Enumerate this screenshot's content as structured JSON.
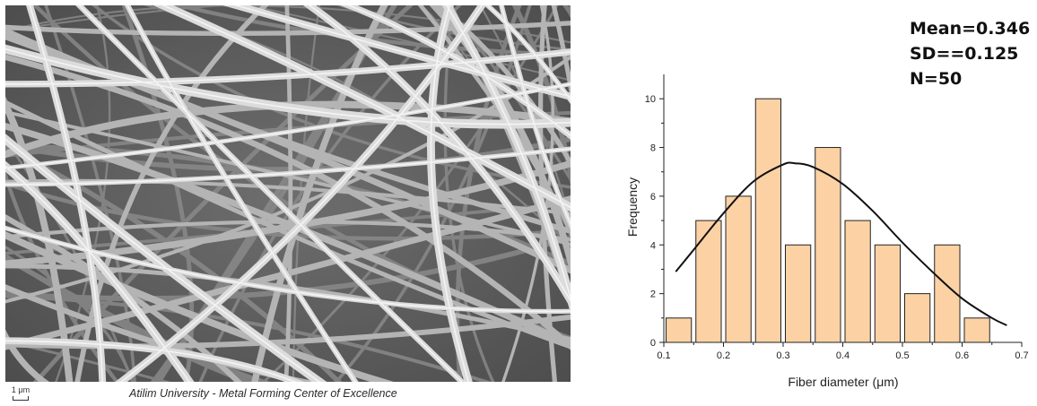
{
  "caption": "Atilim University - Metal Forming Center of Excellence",
  "scale_label": "1 μm",
  "stats": {
    "mean": "Mean=0.346",
    "sd": "SD==0.125",
    "n": "N=50"
  },
  "chart_data": {
    "type": "bar",
    "xlabel": "Fiber diameter (μm)",
    "ylabel": "Frequency",
    "xlim": [
      0.1,
      0.7
    ],
    "ylim": [
      0,
      11
    ],
    "xticks": [
      0.1,
      0.2,
      0.3,
      0.4,
      0.5,
      0.6,
      0.7
    ],
    "yticks": [
      0,
      2,
      4,
      6,
      8,
      10
    ],
    "bin_width": 0.05,
    "bins": [
      {
        "x0": 0.1,
        "x1": 0.15,
        "value": 1
      },
      {
        "x0": 0.15,
        "x1": 0.2,
        "value": 5
      },
      {
        "x0": 0.2,
        "x1": 0.25,
        "value": 6
      },
      {
        "x0": 0.25,
        "x1": 0.3,
        "value": 10
      },
      {
        "x0": 0.3,
        "x1": 0.35,
        "value": 4
      },
      {
        "x0": 0.35,
        "x1": 0.4,
        "value": 8
      },
      {
        "x0": 0.4,
        "x1": 0.45,
        "value": 5
      },
      {
        "x0": 0.45,
        "x1": 0.5,
        "value": 4
      },
      {
        "x0": 0.5,
        "x1": 0.55,
        "value": 2
      },
      {
        "x0": 0.55,
        "x1": 0.6,
        "value": 4
      },
      {
        "x0": 0.6,
        "x1": 0.65,
        "value": 1
      }
    ],
    "fit_curve": {
      "type": "normal",
      "x": [
        0.12,
        0.15,
        0.2,
        0.25,
        0.3,
        0.32,
        0.35,
        0.4,
        0.45,
        0.5,
        0.55,
        0.6,
        0.65,
        0.675
      ],
      "y": [
        2.9,
        3.8,
        5.3,
        6.6,
        7.3,
        7.35,
        7.2,
        6.5,
        5.4,
        4.1,
        2.9,
        1.8,
        1.0,
        0.7
      ]
    },
    "bar_color": "#fcd2a5",
    "bar_edge_color": "#222222",
    "curve_color": "#111111"
  }
}
